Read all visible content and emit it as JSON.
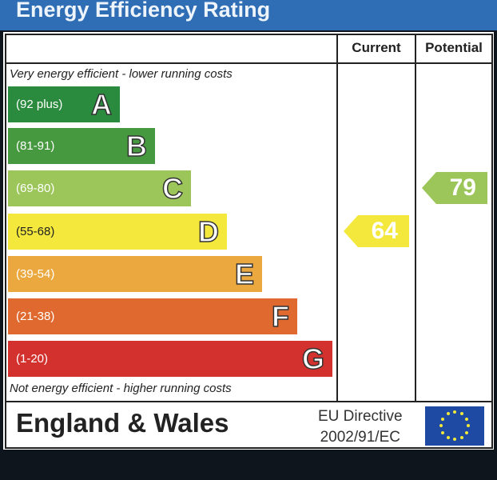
{
  "chart_data": {
    "type": "bar",
    "title": "Energy Efficiency Rating",
    "column_headers": [
      "Current",
      "Potential"
    ],
    "top_note": "Very energy efficient - lower running costs",
    "bottom_note": "Not energy efficient - higher running costs",
    "bands": [
      {
        "letter": "A",
        "range": "(92 plus)",
        "color": "#2a8a3e"
      },
      {
        "letter": "B",
        "range": "(81-91)",
        "color": "#46993f"
      },
      {
        "letter": "C",
        "range": "(69-80)",
        "color": "#9cc65a"
      },
      {
        "letter": "D",
        "range": "(55-68)",
        "color": "#f4e83d"
      },
      {
        "letter": "E",
        "range": "(39-54)",
        "color": "#eba83f"
      },
      {
        "letter": "F",
        "range": "(21-38)",
        "color": "#e0692f"
      },
      {
        "letter": "G",
        "range": "(1-20)",
        "color": "#d3312e"
      }
    ],
    "current": {
      "value": 64,
      "band": "D",
      "color": "#f4e83d"
    },
    "potential": {
      "value": 79,
      "band": "C",
      "color": "#9cc65a"
    }
  },
  "footer": {
    "region": "England & Wales",
    "directive_line1": "EU Directive",
    "directive_line2": "2002/91/EC"
  },
  "colors": {
    "title_bar": "#2f6db4",
    "eu_flag": "#1f4aa3",
    "eu_stars": "#f2e93a"
  }
}
